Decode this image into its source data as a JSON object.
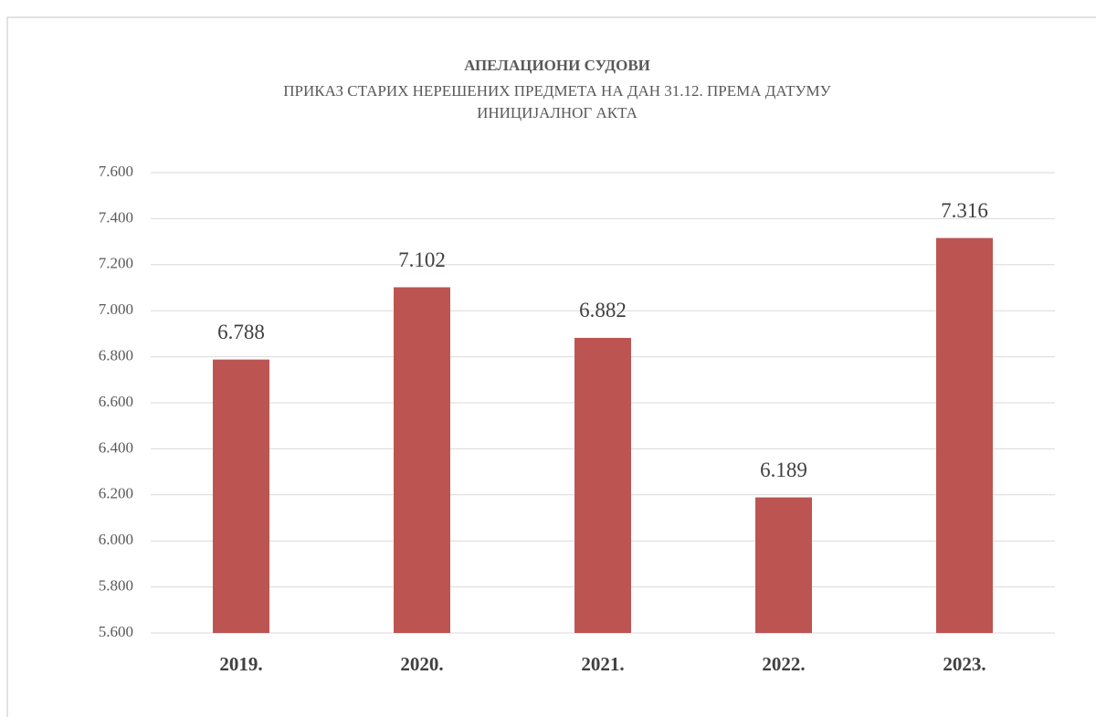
{
  "chart_data": {
    "type": "bar",
    "title": "АПЕЛАЦИОНИ СУДОВИ",
    "subtitle": [
      "ПРИКАЗ СТАРИХ НЕРЕШЕНИХ ПРЕДМЕТА НА ДАН 31.12. ПРЕМА ДАТУМУ",
      "ИНИЦИЈАЛНОГ АКТА"
    ],
    "categories": [
      "2019.",
      "2020.",
      "2021.",
      "2022.",
      "2023."
    ],
    "values": [
      6788,
      7102,
      6882,
      6189,
      7316
    ],
    "value_labels": [
      "6.788",
      "7.102",
      "6.882",
      "6.189",
      "7.316"
    ],
    "color": "#bc5552",
    "ylim": [
      5600,
      7600
    ],
    "yticks": [
      {
        "value": 5600,
        "label": "5.600"
      },
      {
        "value": 5800,
        "label": "5.800"
      },
      {
        "value": 6000,
        "label": "6.000"
      },
      {
        "value": 6200,
        "label": "6.200"
      },
      {
        "value": 6400,
        "label": "6.400"
      },
      {
        "value": 6600,
        "label": "6.600"
      },
      {
        "value": 6800,
        "label": "6.800"
      },
      {
        "value": 7000,
        "label": "7.000"
      },
      {
        "value": 7200,
        "label": "7.200"
      },
      {
        "value": 7400,
        "label": "7.400"
      },
      {
        "value": 7600,
        "label": "7.600"
      }
    ],
    "grid": true
  }
}
